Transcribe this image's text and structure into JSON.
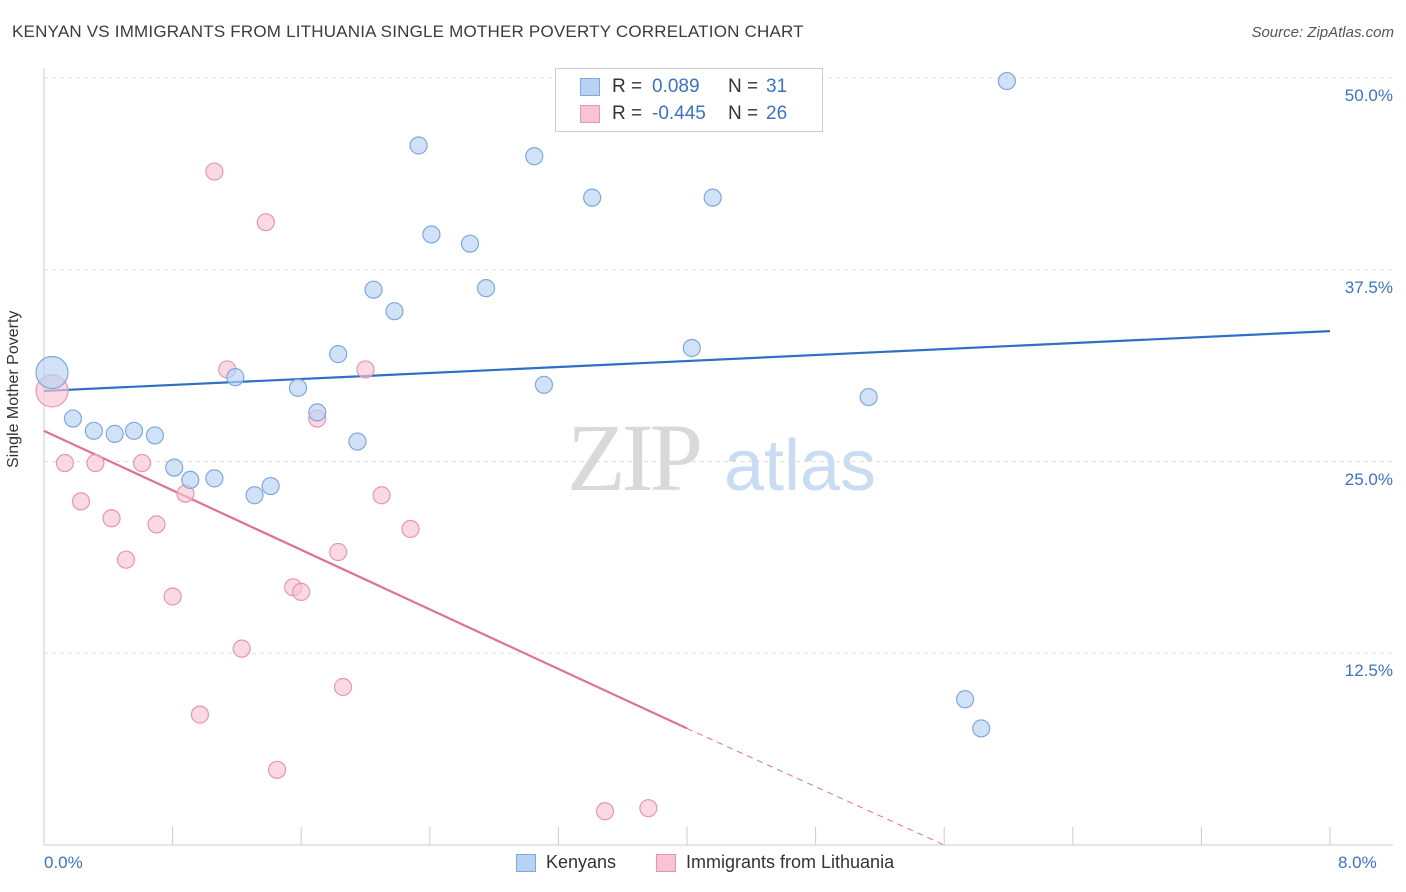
{
  "title": "KENYAN VS IMMIGRANTS FROM LITHUANIA SINGLE MOTHER POVERTY CORRELATION CHART",
  "source": "Source: ZipAtlas.com",
  "watermark": {
    "zip": "ZIP",
    "atlas": "atlas"
  },
  "legend": {
    "rows": [
      {
        "r_label": "R =",
        "r_value": "0.089",
        "n_label": "N =",
        "n_value": "31"
      },
      {
        "r_label": "R =",
        "r_value": "-0.445",
        "n_label": "N =",
        "n_value": "26"
      }
    ]
  },
  "colors": {
    "blue_fill": "#b8d2f3",
    "blue_stroke": "#7fa8dd",
    "blue_line": "#2f6fc6",
    "pink_fill": "#f8c4d4",
    "pink_stroke": "#e896b0",
    "pink_line": "#e0709a",
    "tick_text": "#3a73c4",
    "grid": "#dddddd"
  },
  "chart_data": {
    "type": "scatter",
    "title": "KENYAN VS IMMIGRANTS FROM LITHUANIA SINGLE MOTHER POVERTY CORRELATION CHART",
    "ylabel": "Single Mother Poverty",
    "xlabel": "",
    "xlim": [
      0,
      8.0
    ],
    "ylim": [
      0,
      50.0
    ],
    "x_ticks": [
      "0.0%",
      "8.0%"
    ],
    "y_ticks": [
      {
        "value": 12.5,
        "label": "12.5%"
      },
      {
        "value": 25.0,
        "label": "25.0%"
      },
      {
        "value": 37.5,
        "label": "37.5%"
      },
      {
        "value": 50.0,
        "label": "50.0%"
      }
    ],
    "grid": true,
    "legend_placement": "top-center",
    "series": [
      {
        "name": "Kenyans",
        "r": 0.089,
        "n": 31,
        "trend": {
          "x0": 0.0,
          "y0": 29.6,
          "x1": 8.0,
          "y1": 33.5
        },
        "points": [
          {
            "x": 0.05,
            "y": 30.8,
            "big": true
          },
          {
            "x": 0.18,
            "y": 27.8
          },
          {
            "x": 0.31,
            "y": 27.0
          },
          {
            "x": 0.44,
            "y": 26.8
          },
          {
            "x": 0.56,
            "y": 27.0
          },
          {
            "x": 0.69,
            "y": 26.7
          },
          {
            "x": 0.81,
            "y": 24.6
          },
          {
            "x": 0.91,
            "y": 23.8
          },
          {
            "x": 1.06,
            "y": 23.9
          },
          {
            "x": 1.19,
            "y": 30.5
          },
          {
            "x": 1.31,
            "y": 22.8
          },
          {
            "x": 1.41,
            "y": 23.4
          },
          {
            "x": 1.58,
            "y": 29.8
          },
          {
            "x": 1.7,
            "y": 28.2
          },
          {
            "x": 1.83,
            "y": 32.0
          },
          {
            "x": 1.95,
            "y": 26.3
          },
          {
            "x": 2.05,
            "y": 36.2
          },
          {
            "x": 2.18,
            "y": 34.8
          },
          {
            "x": 2.33,
            "y": 45.6
          },
          {
            "x": 2.41,
            "y": 39.8
          },
          {
            "x": 2.65,
            "y": 39.2
          },
          {
            "x": 2.75,
            "y": 36.3
          },
          {
            "x": 3.05,
            "y": 44.9
          },
          {
            "x": 3.11,
            "y": 30.0
          },
          {
            "x": 3.41,
            "y": 42.2
          },
          {
            "x": 4.03,
            "y": 32.4
          },
          {
            "x": 4.16,
            "y": 42.2
          },
          {
            "x": 5.13,
            "y": 29.2
          },
          {
            "x": 5.73,
            "y": 9.5
          },
          {
            "x": 5.83,
            "y": 7.6
          },
          {
            "x": 5.99,
            "y": 49.8
          }
        ]
      },
      {
        "name": "Immigrants from Lithuania",
        "r": -0.445,
        "n": 26,
        "trend": {
          "x0": 0.0,
          "y0": 27.0,
          "x1": 4.0,
          "y1": 7.6
        },
        "trend_dashed": {
          "x0": 4.0,
          "y0": 7.6,
          "x1": 5.6,
          "y1": 0.0
        },
        "points": [
          {
            "x": 0.05,
            "y": 29.6,
            "big": true
          },
          {
            "x": 0.13,
            "y": 24.9
          },
          {
            "x": 0.23,
            "y": 22.4
          },
          {
            "x": 0.32,
            "y": 24.9
          },
          {
            "x": 0.42,
            "y": 21.3
          },
          {
            "x": 0.51,
            "y": 18.6
          },
          {
            "x": 0.61,
            "y": 24.9
          },
          {
            "x": 0.7,
            "y": 20.9
          },
          {
            "x": 0.8,
            "y": 16.2
          },
          {
            "x": 0.88,
            "y": 22.9
          },
          {
            "x": 0.97,
            "y": 8.5
          },
          {
            "x": 1.06,
            "y": 43.9
          },
          {
            "x": 1.14,
            "y": 31.0
          },
          {
            "x": 1.23,
            "y": 12.8
          },
          {
            "x": 1.38,
            "y": 40.6
          },
          {
            "x": 1.45,
            "y": 4.9
          },
          {
            "x": 1.55,
            "y": 16.8
          },
          {
            "x": 1.6,
            "y": 16.5
          },
          {
            "x": 1.7,
            "y": 27.8
          },
          {
            "x": 1.83,
            "y": 19.1
          },
          {
            "x": 1.86,
            "y": 10.3
          },
          {
            "x": 2.0,
            "y": 31.0
          },
          {
            "x": 2.1,
            "y": 22.8
          },
          {
            "x": 2.28,
            "y": 20.6
          },
          {
            "x": 3.49,
            "y": 2.2
          },
          {
            "x": 3.76,
            "y": 2.4
          }
        ]
      }
    ]
  }
}
